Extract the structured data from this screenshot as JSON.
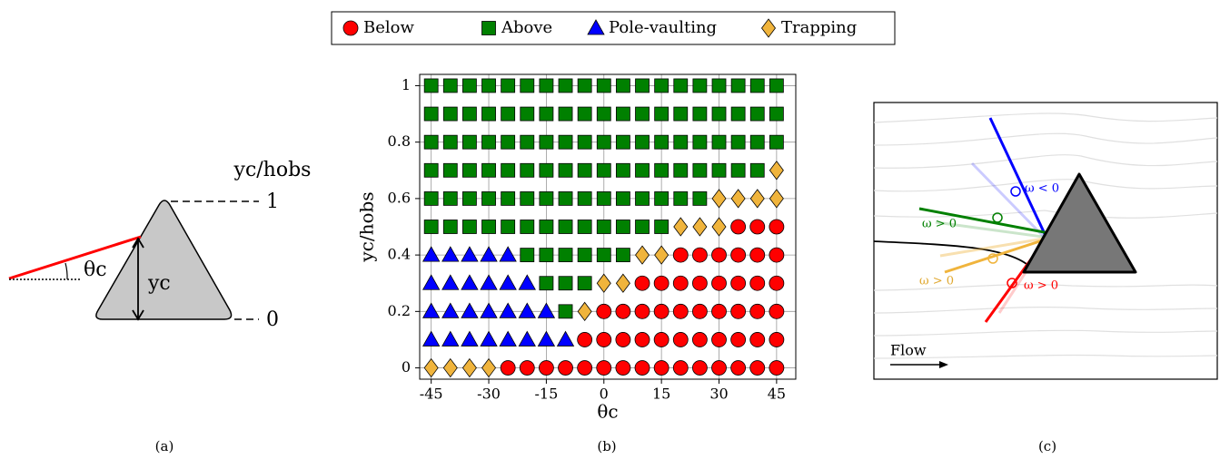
{
  "panel_labels": [
    "(a)",
    "(b)",
    "(c)"
  ],
  "panel_a": {
    "axis_label": "yc/hobs",
    "top": "1",
    "bottom": "0",
    "angle_label": "θc",
    "height_label": "yc"
  },
  "panel_c": {
    "labels": [
      "ω < 0",
      "ω > 0",
      "ω > 0",
      "ω > 0"
    ],
    "flow": "Flow"
  },
  "chart_data": {
    "type": "scatter",
    "xlabel": "θc",
    "ylabel": "yc/hobs",
    "xlim": [
      -48,
      50
    ],
    "ylim": [
      -0.04,
      1.04
    ],
    "xticks": [
      -45,
      -30,
      -15,
      0,
      15,
      30,
      45
    ],
    "yticks": [
      0,
      0.2,
      0.4,
      0.6,
      0.8,
      1
    ],
    "grid": true,
    "legend": "top",
    "series": [
      {
        "name": "Below",
        "color": "#ff0000",
        "marker": "circle",
        "x": [
          35,
          40,
          45,
          20,
          25,
          30,
          35,
          40,
          45,
          10,
          15,
          20,
          25,
          30,
          35,
          40,
          45,
          0,
          5,
          10,
          15,
          20,
          25,
          30,
          35,
          40,
          45,
          -5,
          0,
          5,
          10,
          15,
          20,
          25,
          30,
          35,
          40,
          45,
          -25,
          -20,
          -15,
          -10,
          -5,
          0,
          5,
          10,
          15,
          20,
          25,
          30,
          35,
          40,
          45
        ],
        "y": [
          0.5,
          0.5,
          0.5,
          0.4,
          0.4,
          0.4,
          0.4,
          0.4,
          0.4,
          0.3,
          0.3,
          0.3,
          0.3,
          0.3,
          0.3,
          0.3,
          0.3,
          0.2,
          0.2,
          0.2,
          0.2,
          0.2,
          0.2,
          0.2,
          0.2,
          0.2,
          0.2,
          0.1,
          0.1,
          0.1,
          0.1,
          0.1,
          0.1,
          0.1,
          0.1,
          0.1,
          0.1,
          0.1,
          0,
          0,
          0,
          0,
          0,
          0,
          0,
          0,
          0,
          0,
          0,
          0,
          0,
          0,
          0
        ]
      },
      {
        "name": "Above",
        "color": "#008000",
        "marker": "square",
        "x": [
          -45,
          -40,
          -35,
          -30,
          -25,
          -20,
          -15,
          -10,
          -5,
          0,
          5,
          10,
          15,
          20,
          25,
          30,
          35,
          40,
          45,
          -45,
          -40,
          -35,
          -30,
          -25,
          -20,
          -15,
          -10,
          -5,
          0,
          5,
          10,
          15,
          20,
          25,
          30,
          35,
          40,
          45,
          -45,
          -40,
          -35,
          -30,
          -25,
          -20,
          -15,
          -10,
          -5,
          0,
          5,
          10,
          15,
          20,
          25,
          30,
          35,
          40,
          45,
          -45,
          -40,
          -35,
          -30,
          -25,
          -20,
          -15,
          -10,
          -5,
          0,
          5,
          10,
          15,
          20,
          25,
          30,
          35,
          40,
          -45,
          -40,
          -35,
          -30,
          -25,
          -20,
          -15,
          -10,
          -5,
          0,
          5,
          10,
          15,
          20,
          25,
          -45,
          -40,
          -35,
          -30,
          -25,
          -20,
          -15,
          -10,
          -5,
          0,
          5,
          10,
          15,
          -20,
          -15,
          -10,
          -5,
          0,
          5,
          -15,
          -10,
          -5,
          -10
        ],
        "y": [
          1,
          1,
          1,
          1,
          1,
          1,
          1,
          1,
          1,
          1,
          1,
          1,
          1,
          1,
          1,
          1,
          1,
          1,
          1,
          0.9,
          0.9,
          0.9,
          0.9,
          0.9,
          0.9,
          0.9,
          0.9,
          0.9,
          0.9,
          0.9,
          0.9,
          0.9,
          0.9,
          0.9,
          0.9,
          0.9,
          0.9,
          0.9,
          0.8,
          0.8,
          0.8,
          0.8,
          0.8,
          0.8,
          0.8,
          0.8,
          0.8,
          0.8,
          0.8,
          0.8,
          0.8,
          0.8,
          0.8,
          0.8,
          0.8,
          0.8,
          0.8,
          0.7,
          0.7,
          0.7,
          0.7,
          0.7,
          0.7,
          0.7,
          0.7,
          0.7,
          0.7,
          0.7,
          0.7,
          0.7,
          0.7,
          0.7,
          0.7,
          0.7,
          0.7,
          0.6,
          0.6,
          0.6,
          0.6,
          0.6,
          0.6,
          0.6,
          0.6,
          0.6,
          0.6,
          0.6,
          0.6,
          0.6,
          0.6,
          0.6,
          0.5,
          0.5,
          0.5,
          0.5,
          0.5,
          0.5,
          0.5,
          0.5,
          0.5,
          0.5,
          0.5,
          0.5,
          0.5,
          0.4,
          0.4,
          0.4,
          0.4,
          0.4,
          0.4,
          0.3,
          0.3,
          0.3,
          0.2
        ]
      },
      {
        "name": "Pole-vaulting",
        "color": "#0000ff",
        "marker": "triangle",
        "x": [
          -45,
          -40,
          -35,
          -30,
          -25,
          -45,
          -40,
          -35,
          -30,
          -25,
          -20,
          -45,
          -40,
          -35,
          -30,
          -25,
          -20,
          -15,
          -45,
          -40,
          -35,
          -30,
          -25,
          -20,
          -15,
          -10
        ],
        "y": [
          0.4,
          0.4,
          0.4,
          0.4,
          0.4,
          0.3,
          0.3,
          0.3,
          0.3,
          0.3,
          0.3,
          0.2,
          0.2,
          0.2,
          0.2,
          0.2,
          0.2,
          0.2,
          0.1,
          0.1,
          0.1,
          0.1,
          0.1,
          0.1,
          0.1,
          0.1
        ]
      },
      {
        "name": "Trapping",
        "color": "#f0b43c",
        "marker": "diamond",
        "x": [
          45,
          30,
          35,
          40,
          45,
          20,
          25,
          30,
          10,
          15,
          0,
          5,
          -5,
          -45,
          -40,
          -35,
          -30
        ],
        "y": [
          0.7,
          0.6,
          0.6,
          0.6,
          0.6,
          0.5,
          0.5,
          0.5,
          0.4,
          0.4,
          0.3,
          0.3,
          0.2,
          0,
          0,
          0,
          0
        ]
      }
    ]
  }
}
